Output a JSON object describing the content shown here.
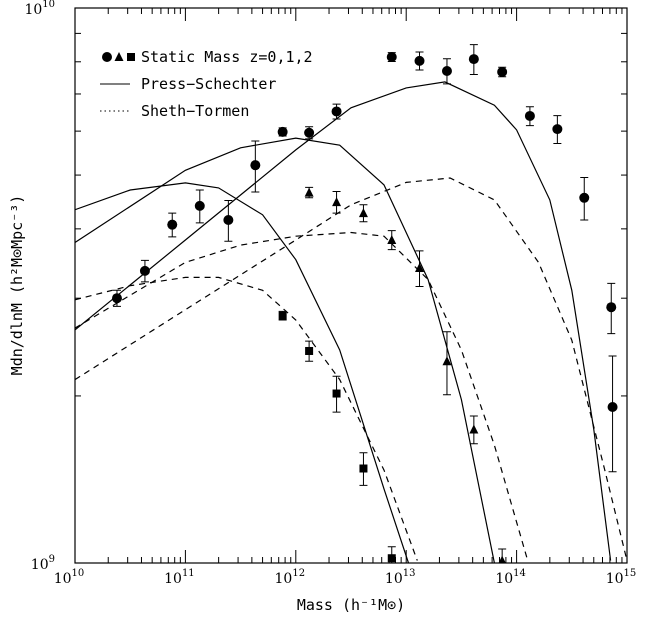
{
  "chart_data": {
    "type": "line",
    "xlabel": "Mass (h⁻¹M⊙)",
    "ylabel": "Mdn/dlnM (h²M⊙Mpc⁻³)",
    "xscale": "log",
    "yscale": "log",
    "xlim": [
      10000000000.0,
      1000000000000000.0
    ],
    "ylim": [
      1000000000.0,
      10000000000.0
    ],
    "xticks": [
      {
        "value": 10000000000.0,
        "label": "10",
        "exponent": "10"
      },
      {
        "value": 100000000000.0,
        "label": "10",
        "exponent": "11"
      },
      {
        "value": 1000000000000.0,
        "label": "10",
        "exponent": "12"
      },
      {
        "value": 10000000000000.0,
        "label": "10",
        "exponent": "13"
      },
      {
        "value": 100000000000000.0,
        "label": "10",
        "exponent": "14"
      },
      {
        "value": 1000000000000000.0,
        "label": "10",
        "exponent": "15"
      }
    ],
    "xminorticks": [
      20000000000.0,
      30000000000.0,
      40000000000.0,
      50000000000.0,
      60000000000.0,
      70000000000.0,
      80000000000.0,
      90000000000.0,
      200000000000.0,
      300000000000.0,
      400000000000.0,
      500000000000.0,
      600000000000.0,
      700000000000.0,
      800000000000.0,
      900000000000.0,
      2000000000000.0,
      3000000000000.0,
      4000000000000.0,
      5000000000000.0,
      6000000000000.0,
      7000000000000.0,
      8000000000000.0,
      9000000000000.0,
      20000000000000.0,
      30000000000000.0,
      40000000000000.0,
      50000000000000.0,
      60000000000000.0,
      70000000000000.0,
      80000000000000.0,
      90000000000000.0,
      200000000000000.0,
      300000000000000.0,
      400000000000000.0,
      500000000000000.0,
      600000000000000.0,
      700000000000000.0,
      800000000000000.0,
      900000000000000.0
    ],
    "yticks": [
      {
        "value": 1000000000.0,
        "label": "10",
        "exponent": "9"
      },
      {
        "value": 10000000000.0,
        "label": "10",
        "exponent": "10"
      }
    ],
    "yminorticks": [
      2000000000.0,
      3000000000.0,
      4000000000.0,
      5000000000.0,
      6000000000.0,
      7000000000.0,
      8000000000.0,
      9000000000.0
    ],
    "legend": [
      {
        "name": "Static Mass z=0,1,2",
        "markers": [
          "circle",
          "triangle",
          "square"
        ]
      },
      {
        "name": "Press−Schechter",
        "style": "solid"
      },
      {
        "name": "Sheth−Tormen",
        "style": "dotted"
      }
    ],
    "series": [
      {
        "kind": "points",
        "marker": "circle",
        "color": "#000000",
        "x": [
          24000000000.0,
          43000000000.0,
          76000000000.0,
          135000000000.0,
          245000000000.0,
          430000000000.0,
          760000000000.0,
          1320000000000.0,
          2340000000000.0,
          7400000000000.0,
          13200000000000.0,
          23400000000000.0,
          41000000000000.0,
          74000000000000.0,
          132000000000000.0,
          234000000000000.0,
          410000000000000.0,
          720000000000000.0,
          740000000000000.0
        ],
        "values": [
          3000000000.0,
          3360000000.0,
          4070000000.0,
          4400000000.0,
          4150000000.0,
          5210000000.0,
          5980000000.0,
          5960000000.0,
          6510000000.0,
          8160000000.0,
          8030000000.0,
          7700000000.0,
          8090000000.0,
          7670000000.0,
          6390000000.0,
          6050000000.0,
          4550000000.0,
          2890000000.0,
          1910000000.0
        ],
        "yerr": [
          100000000.0,
          150000000.0,
          200000000.0,
          300000000.0,
          350000000.0,
          550000000.0,
          100000000.0,
          150000000.0,
          200000000.0,
          150000000.0,
          300000000.0,
          400000000.0,
          500000000.0,
          150000000.0,
          250000000.0,
          350000000.0,
          400000000.0,
          300000000.0,
          450000000.0
        ]
      },
      {
        "kind": "points",
        "marker": "triangle",
        "color": "#000000",
        "x": [
          1320000000000.0,
          2340000000000.0,
          4100000000000.0,
          7400000000000.0,
          13200000000000.0,
          23400000000000.0,
          41000000000000.0,
          74000000000000.0
        ],
        "values": [
          4650000000.0,
          4470000000.0,
          4270000000.0,
          3820000000.0,
          3400000000.0,
          2310000000.0,
          1740000000.0,
          1010000000.0
        ],
        "yerr": [
          100000000.0,
          200000000.0,
          150000000.0,
          150000000.0,
          250000000.0,
          300000000.0,
          100000000.0,
          50000000.0
        ]
      },
      {
        "kind": "points",
        "marker": "square",
        "color": "#000000",
        "x": [
          760000000000.0,
          1320000000000.0,
          2340000000000.0,
          4100000000000.0,
          7400000000000.0
        ],
        "values": [
          2790000000.0,
          2410000000.0,
          2020000000.0,
          1480000000.0,
          1020000000.0
        ],
        "yerr": [
          50000000.0,
          100000000.0,
          150000000.0,
          100000000.0,
          50000000.0
        ]
      },
      {
        "kind": "curve",
        "style": "solid",
        "color": "#000000",
        "x": [
          10000000000.0,
          100000000000.0,
          1000000000000.0,
          3160000000000.0,
          10000000000000.0,
          22400000000000.0,
          63000000000000.0,
          100000000000000.0,
          200000000000000.0,
          316000000000000.0,
          500000000000000.0,
          710000000000000.0
        ],
        "values": [
          2630000000.0,
          3820000000.0,
          5550000000.0,
          6610000000.0,
          7180000000.0,
          7360000000.0,
          6680000000.0,
          6030000000.0,
          4510000000.0,
          3100000000.0,
          1740000000.0,
          1010000000.0
        ]
      },
      {
        "kind": "curve",
        "style": "solid",
        "color": "#000000",
        "x": [
          10000000000.0,
          100000000000.0,
          316000000000.0,
          1000000000000.0,
          2500000000000.0,
          6300000000000.0,
          15800000000000.0,
          31600000000000.0,
          63000000000000.0
        ],
        "values": [
          3780000000.0,
          5100000000.0,
          5600000000.0,
          5830000000.0,
          5660000000.0,
          4800000000.0,
          3240000000.0,
          1970000000.0,
          1000000000.0
        ]
      },
      {
        "kind": "curve",
        "style": "solid",
        "color": "#000000",
        "x": [
          10000000000.0,
          31600000000.0,
          100000000000.0,
          200000000000.0,
          500000000000.0,
          1000000000000.0,
          2500000000000.0,
          6300000000000.0,
          10500000000000.0
        ],
        "values": [
          4330000000.0,
          4700000000.0,
          4840000000.0,
          4740000000.0,
          4240000000.0,
          3520000000.0,
          2420000000.0,
          1360000000.0,
          1000000000.0
        ]
      },
      {
        "kind": "curve",
        "style": "dashed",
        "color": "#000000",
        "x": [
          10000000000.0,
          100000000000.0,
          1000000000000.0,
          3160000000000.0,
          10000000000000.0,
          25000000000000.0,
          63000000000000.0,
          158000000000000.0,
          316000000000000.0,
          630000000000000.0,
          1000000000000000.0
        ],
        "values": [
          2140000000.0,
          2860000000.0,
          3820000000.0,
          4420000000.0,
          4850000000.0,
          4940000000.0,
          4510000000.0,
          3480000000.0,
          2520000000.0,
          1470000000.0,
          1010000000.0
        ]
      },
      {
        "kind": "curve",
        "style": "dashed",
        "color": "#000000",
        "x": [
          10000000000.0,
          100000000000.0,
          316000000000.0,
          1000000000000.0,
          3160000000000.0,
          6300000000000.0,
          15800000000000.0,
          31600000000000.0,
          63000000000000.0,
          126000000000000.0
        ],
        "values": [
          2650000000.0,
          3480000000.0,
          3740000000.0,
          3880000000.0,
          3940000000.0,
          3880000000.0,
          3240000000.0,
          2420000000.0,
          1630000000.0,
          1010000000.0
        ]
      },
      {
        "kind": "curve",
        "style": "dashed",
        "color": "#000000",
        "x": [
          10000000000.0,
          31600000000.0,
          100000000000.0,
          200000000000.0,
          500000000000.0,
          1000000000000.0,
          2500000000000.0,
          6300000000000.0,
          12600000000000.0
        ],
        "values": [
          2980000000.0,
          3160000000.0,
          3270000000.0,
          3270000000.0,
          3100000000.0,
          2740000000.0,
          2140000000.0,
          1470000000.0,
          1010000000.0
        ]
      }
    ]
  }
}
